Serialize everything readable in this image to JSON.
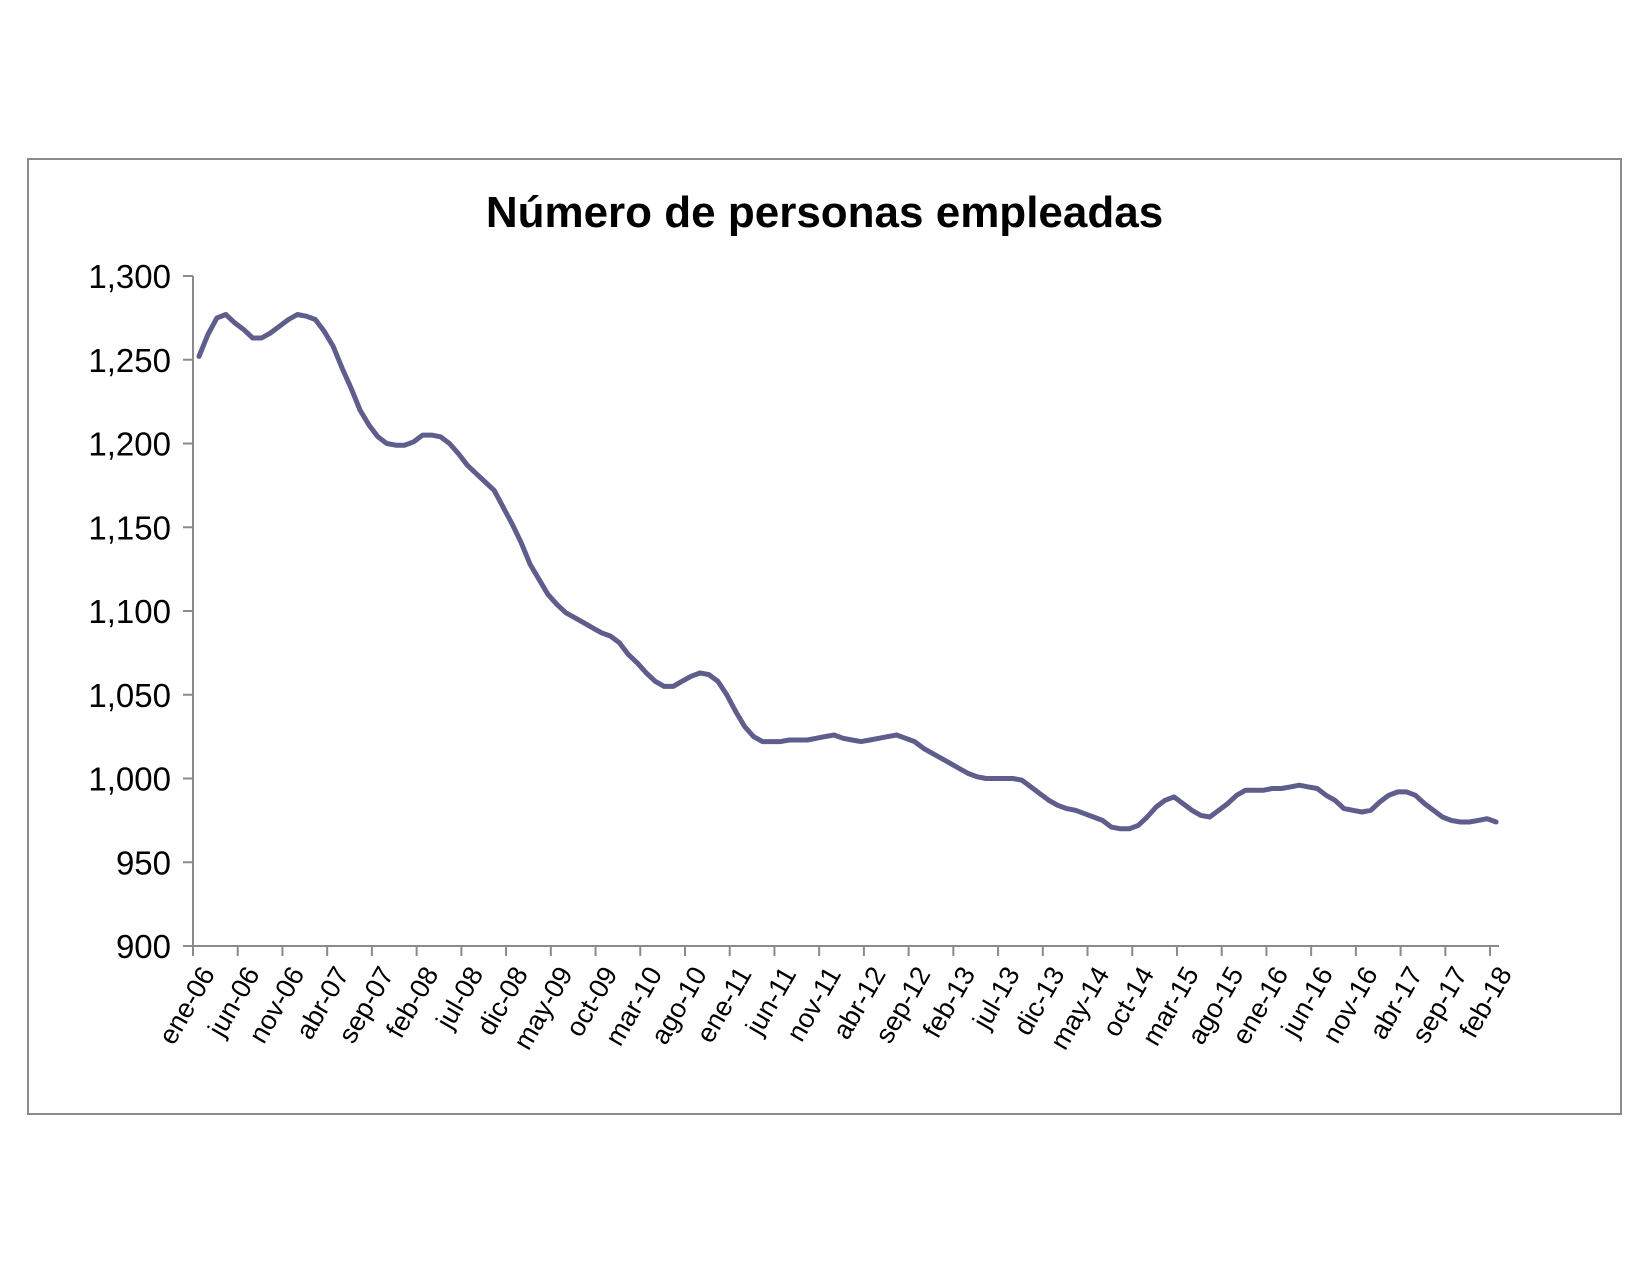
{
  "chart_data": {
    "type": "line",
    "title": "Número de personas empleadas",
    "xlabel": "",
    "ylabel": "",
    "ylim": [
      900,
      1300
    ],
    "yticks": [
      900,
      950,
      1000,
      1050,
      1100,
      1150,
      1200,
      1250,
      1300
    ],
    "ytick_labels": [
      "900",
      "950",
      "1,000",
      "1,050",
      "1,100",
      "1,150",
      "1,200",
      "1,250",
      "1,300"
    ],
    "x_tick_labels": [
      "ene-06",
      "jun-06",
      "nov-06",
      "abr-07",
      "sep-07",
      "feb-08",
      "jul-08",
      "dic-08",
      "may-09",
      "oct-09",
      "mar-10",
      "ago-10",
      "ene-11",
      "jun-11",
      "nov-11",
      "abr-12",
      "sep-12",
      "feb-13",
      "jul-13",
      "dic-13",
      "may-14",
      "oct-14",
      "mar-15",
      "ago-15",
      "ene-16",
      "jun-16",
      "nov-16",
      "abr-17",
      "sep-17",
      "feb-18"
    ],
    "x_start": "2006-01",
    "x_end": "2018-03",
    "legend": "none",
    "grid": false,
    "line_color": "#5e5d8c",
    "series": [
      {
        "values": [
          1252,
          1265,
          1275,
          1277,
          1272,
          1268,
          1263,
          1263,
          1266,
          1270,
          1274,
          1277,
          1276,
          1274,
          1267,
          1258,
          1245,
          1233,
          1220,
          1211,
          1204,
          1200,
          1199,
          1199,
          1201,
          1205,
          1205,
          1204,
          1200,
          1194,
          1187,
          1182,
          1177,
          1172,
          1162,
          1152,
          1141,
          1128,
          1119,
          1110,
          1104,
          1099,
          1096,
          1093,
          1090,
          1087,
          1085,
          1081,
          1074,
          1069,
          1063,
          1058,
          1055,
          1055,
          1058,
          1061,
          1063,
          1062,
          1058,
          1050,
          1040,
          1031,
          1025,
          1022,
          1022,
          1022,
          1023,
          1023,
          1023,
          1024,
          1025,
          1026,
          1024,
          1023,
          1022,
          1023,
          1024,
          1025,
          1026,
          1024,
          1022,
          1018,
          1015,
          1012,
          1009,
          1006,
          1003,
          1001,
          1000,
          1000,
          1000,
          1000,
          999,
          995,
          991,
          987,
          984,
          982,
          981,
          979,
          977,
          975,
          971,
          970,
          970,
          972,
          977,
          983,
          987,
          989,
          985,
          981,
          978,
          977,
          981,
          985,
          990,
          993,
          993,
          993,
          994,
          994,
          995,
          996,
          995,
          994,
          990,
          987,
          982,
          981,
          980,
          981,
          986,
          990,
          992,
          992,
          990,
          985,
          981,
          977,
          975,
          974,
          974,
          975,
          976,
          974
        ]
      }
    ]
  }
}
